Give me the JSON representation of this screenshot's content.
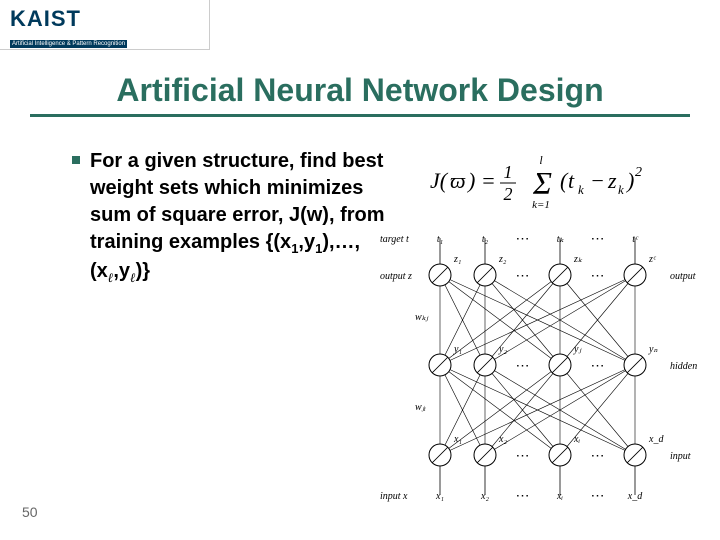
{
  "logo": {
    "main": "KAIST",
    "sub": "Artificial Intelligence & Pattern Recognition"
  },
  "title": "Artificial Neural Network Design",
  "bullet": {
    "line1": "For a given structure, find best weight sets which minimizes sum of square error, J(w), from training examples {(x",
    "sub1": "1",
    "mid1": ",y",
    "sub2": "1",
    "mid2": "),…,(x",
    "subl1": "ℓ",
    "mid3": ",y",
    "subl2": "ℓ",
    "end": ")}"
  },
  "formula": {
    "text": "J(ϖ) = ½ Σ (tₖ − zₖ)²",
    "sum_upper": "l",
    "sum_lower": "k=1"
  },
  "diagram": {
    "layers": {
      "target": {
        "label_left": "target t",
        "nodes": [
          "t₁",
          "t₂",
          "tₖ",
          "tᶜ"
        ]
      },
      "output": {
        "label_left": "output z",
        "label_right": "output",
        "nodes": [
          "z₁",
          "z₂",
          "zₖ",
          "zᶜ"
        ]
      },
      "hidden": {
        "label_right": "hidden",
        "weight_label": "wₖⱼ",
        "nodes": [
          "y₁",
          "y₂",
          "yⱼ",
          "yₙ"
        ]
      },
      "input_nodes": {
        "label_right": "input",
        "weight_label": "wⱼᵢ",
        "nodes": [
          "x₁",
          "x₂",
          "xᵢ",
          "x_d"
        ]
      },
      "input": {
        "label_left": "input x",
        "nodes": [
          "x₁",
          "x₂",
          "xᵢ",
          "x_d"
        ]
      }
    },
    "node_radius": 11,
    "node_stroke": "#000000",
    "node_fill": "#ffffff",
    "line_color": "#000000",
    "ellipsis": "⋯",
    "label_fontsize": 10,
    "layer_label_fontsize": 10
  },
  "page_number": "50",
  "colors": {
    "accent": "#2a6e5f",
    "logo_blue": "#003a5c",
    "text": "#000000",
    "page_num": "#666666",
    "background": "#ffffff"
  }
}
